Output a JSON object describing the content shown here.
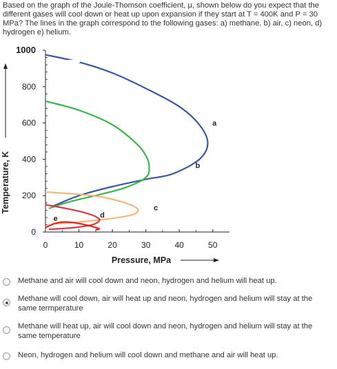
{
  "question": {
    "text": "Based on the graph of the Joule-Thomson coefficient, μ, shown below do you expect that the different gases will cool down or heat up upon expansion if they start at T = 400K and P = 30 MPa?  The lines in the graph correspond to the following gases: a) methane, b) air, c) neon, d) hydrogen e) helium."
  },
  "chart_data": {
    "type": "line",
    "xlabel": "Pressure, MPa",
    "ylabel": "Temperature, K",
    "xlim": [
      0,
      55
    ],
    "ylim": [
      0,
      1000
    ],
    "xticks": [
      0,
      10,
      20,
      30,
      40,
      50
    ],
    "yticks": [
      0,
      200,
      400,
      600,
      800,
      1000
    ],
    "series": [
      {
        "name": "a",
        "color": "#3a56a0",
        "points": [
          [
            0,
            975
          ],
          [
            10,
            935
          ],
          [
            20,
            875
          ],
          [
            30,
            790
          ],
          [
            40,
            690
          ],
          [
            46,
            590
          ],
          [
            48.5,
            490
          ],
          [
            46,
            400
          ],
          [
            38,
            320
          ],
          [
            30,
            290
          ],
          [
            20,
            250
          ],
          [
            10,
            200
          ],
          [
            2,
            140
          ]
        ]
      },
      {
        "name": "b",
        "color": "#3cb54a",
        "points": [
          [
            0,
            720
          ],
          [
            10,
            670
          ],
          [
            20,
            590
          ],
          [
            27,
            490
          ],
          [
            30,
            420
          ],
          [
            31,
            360
          ],
          [
            30,
            300
          ],
          [
            24,
            245
          ],
          [
            16,
            205
          ],
          [
            8,
            170
          ],
          [
            1,
            130
          ]
        ]
      },
      {
        "name": "c",
        "color": "#f5b67e",
        "points": [
          [
            0,
            220
          ],
          [
            8,
            210
          ],
          [
            16,
            195
          ],
          [
            23,
            165
          ],
          [
            27,
            135
          ],
          [
            27.5,
            110
          ],
          [
            25,
            90
          ],
          [
            18,
            70
          ],
          [
            10,
            55
          ],
          [
            3,
            45
          ]
        ]
      },
      {
        "name": "d",
        "color": "#d9384a",
        "points": [
          [
            0,
            150
          ],
          [
            6,
            130
          ],
          [
            12,
            105
          ],
          [
            15.5,
            80
          ],
          [
            16,
            60
          ],
          [
            14,
            40
          ],
          [
            9,
            25
          ],
          [
            4,
            18
          ],
          [
            1,
            15
          ]
        ]
      },
      {
        "name": "e",
        "color": "#e8221c",
        "points": [
          [
            0,
            25
          ],
          [
            3,
            48
          ],
          [
            6,
            55
          ],
          [
            9,
            50
          ],
          [
            13,
            35
          ],
          [
            16,
            18
          ],
          [
            15,
            12
          ]
        ]
      }
    ],
    "curve_labels": [
      "a",
      "b",
      "c",
      "d",
      "e"
    ]
  },
  "options": [
    {
      "text": "Methane and air will cool down and neon, hydrogen and helium will heat up.",
      "selected": false
    },
    {
      "text": "Methane will cool down, air will heat up and neon, hydrogen and helium will stay at the same termperature",
      "selected": true
    },
    {
      "text": "Methane will heat up, air will cool down and neon, hydrogen and helium will stay at the same temperature",
      "selected": false
    },
    {
      "text": "Neon, hydrogen and helium will cool down and methane and air will heat up.",
      "selected": false
    }
  ]
}
